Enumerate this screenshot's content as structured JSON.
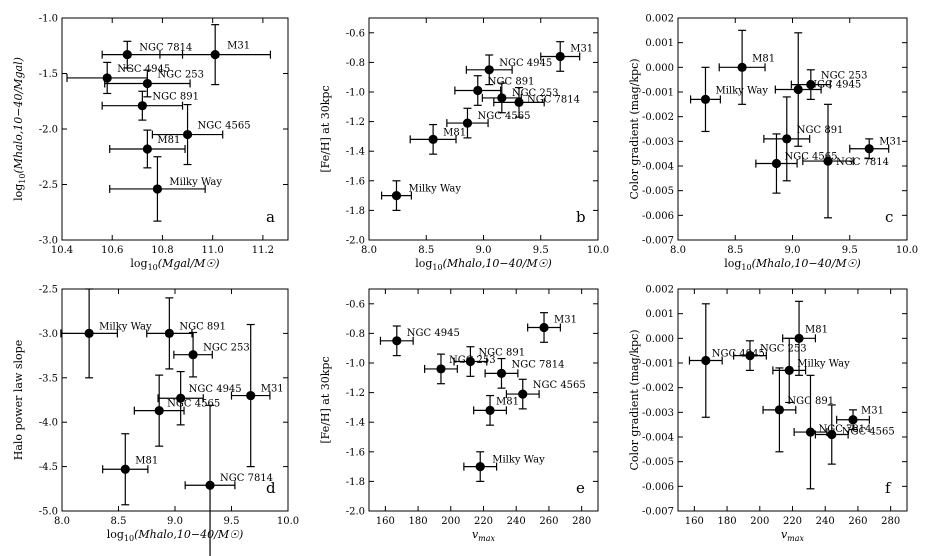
{
  "chart_data": [
    {
      "type": "scatter",
      "panel": "a",
      "xlabel": "log10(Mgal/M☉)",
      "ylabel": "log10(Mhalo,10−40/Mgal)",
      "xlim": [
        10.4,
        11.3
      ],
      "ylim": [
        -3.0,
        -1.0
      ],
      "xticks": [
        "10.4",
        "10.6",
        "10.8",
        "11.0",
        "11.2"
      ],
      "yticks": [
        "-1.0",
        "-1.5",
        "-2.0",
        "-2.5",
        "-3.0"
      ],
      "points": [
        {
          "name": "NGC 7814",
          "x": 10.66,
          "y": -1.33,
          "xerr": [
            0.1,
            0.22
          ],
          "yerr": 0.12
        },
        {
          "name": "M31",
          "x": 11.01,
          "y": -1.33,
          "xerr": 0.22,
          "yerr": 0.27
        },
        {
          "name": "NGC 4945",
          "x": 10.58,
          "y": -1.54,
          "xerr": 0.16,
          "yerr": 0.14
        },
        {
          "name": "NGC 253",
          "x": 10.74,
          "y": -1.59,
          "xerr": 0.17,
          "yerr": 0.12
        },
        {
          "name": "NGC 891",
          "x": 10.72,
          "y": -1.79,
          "xerr": 0.16,
          "yerr": 0.13
        },
        {
          "name": "NGC 4565",
          "x": 10.9,
          "y": -2.05,
          "xerr": 0.14,
          "yerr": 0.27
        },
        {
          "name": "M81",
          "x": 10.74,
          "y": -2.18,
          "xerr": 0.15,
          "yerr": 0.17
        },
        {
          "name": "Milky Way",
          "x": 10.78,
          "y": -2.54,
          "xerr": 0.19,
          "yerr": 0.29
        }
      ]
    },
    {
      "type": "scatter",
      "panel": "b",
      "xlabel": "log10(Mhalo,10−40/M☉)",
      "ylabel": "[Fe/H] at 30kpc",
      "xlim": [
        8.0,
        10.0
      ],
      "ylim": [
        -2.0,
        -0.5
      ],
      "xticks": [
        "8.0",
        "8.5",
        "9.0",
        "9.5",
        "10.0"
      ],
      "yticks": [
        "-0.6",
        "-0.8",
        "-1.0",
        "-1.2",
        "-1.4",
        "-1.6",
        "-1.8",
        "-2.0"
      ],
      "points": [
        {
          "name": "M31",
          "x": 9.67,
          "y": -0.76,
          "xerr": 0.17,
          "yerr": 0.1
        },
        {
          "name": "NGC 4945",
          "x": 9.05,
          "y": -0.85,
          "xerr": 0.2,
          "yerr": 0.1
        },
        {
          "name": "NGC 891",
          "x": 8.95,
          "y": -0.99,
          "xerr": 0.2,
          "yerr": 0.1
        },
        {
          "name": "NGC 253",
          "x": 9.16,
          "y": -1.04,
          "xerr": 0.17,
          "yerr": 0.1
        },
        {
          "name": "NGC 7814",
          "x": 9.31,
          "y": -1.07,
          "xerr": 0.22,
          "yerr": 0.1
        },
        {
          "name": "NGC 4565",
          "x": 8.86,
          "y": -1.21,
          "xerr": 0.18,
          "yerr": 0.1
        },
        {
          "name": "M81",
          "x": 8.56,
          "y": -1.32,
          "xerr": 0.2,
          "yerr": 0.1
        },
        {
          "name": "Milky Way",
          "x": 8.24,
          "y": -1.7,
          "xerr": 0.13,
          "yerr": 0.1
        }
      ]
    },
    {
      "type": "scatter",
      "panel": "c",
      "xlabel": "log10(Mhalo,10−40/M☉)",
      "ylabel": "Color gradient (mag/kpc)",
      "xlim": [
        8.0,
        10.0
      ],
      "ylim": [
        -0.007,
        0.002
      ],
      "xticks": [
        "8.0",
        "8.5",
        "9.0",
        "9.5",
        "10.0"
      ],
      "yticks": [
        "0.002",
        "0.001",
        "0.000",
        "-0.001",
        "-0.002",
        "-0.003",
        "-0.004",
        "-0.005",
        "-0.006",
        "-0.007"
      ],
      "points": [
        {
          "name": "M81",
          "x": 8.56,
          "y": 0.0,
          "xerr": 0.2,
          "yerr": 0.0015
        },
        {
          "name": "NGC 253",
          "x": 9.16,
          "y": -0.0007,
          "xerr": 0.17,
          "yerr": 0.0006
        },
        {
          "name": "NGC 4945",
          "x": 9.05,
          "y": -0.0009,
          "xerr": 0.2,
          "yerr": 0.0023
        },
        {
          "name": "Milky Way",
          "x": 8.24,
          "y": -0.0013,
          "xerr": 0.13,
          "yerr": 0.0013
        },
        {
          "name": "NGC 891",
          "x": 8.95,
          "y": -0.0029,
          "xerr": 0.2,
          "yerr": 0.0017
        },
        {
          "name": "M31",
          "x": 9.67,
          "y": -0.0033,
          "xerr": 0.17,
          "yerr": 0.0004
        },
        {
          "name": "NGC 7814",
          "x": 9.31,
          "y": -0.0038,
          "xerr": 0.22,
          "yerr": 0.0023
        },
        {
          "name": "NGC 4565",
          "x": 8.86,
          "y": -0.0039,
          "xerr": 0.18,
          "yerr": 0.0012
        }
      ]
    },
    {
      "type": "scatter",
      "panel": "d",
      "xlabel": "log10(Mhalo,10−40/M☉)",
      "ylabel": "Halo power law slope",
      "xlim": [
        8.0,
        10.0
      ],
      "ylim": [
        -5.0,
        -2.5
      ],
      "xticks": [
        "8.0",
        "8.5",
        "9.0",
        "9.5",
        "10.0"
      ],
      "yticks": [
        "-2.5",
        "-3.0",
        "-3.5",
        "-4.0",
        "-4.5",
        "-5.0"
      ],
      "points": [
        {
          "name": "Milky Way",
          "x": 8.24,
          "y": -3.0,
          "xerr": 0.25,
          "yerr": 0.5
        },
        {
          "name": "NGC 891",
          "x": 8.95,
          "y": -3.0,
          "xerr": 0.2,
          "yerr": 0.4
        },
        {
          "name": "NGC 253",
          "x": 9.16,
          "y": -3.24,
          "xerr": 0.17,
          "yerr": 0.25
        },
        {
          "name": "M31",
          "x": 9.67,
          "y": -3.7,
          "xerr": 0.17,
          "yerr": 0.8
        },
        {
          "name": "NGC 4945",
          "x": 9.05,
          "y": -3.73,
          "xerr": 0.2,
          "yerr": 0.3
        },
        {
          "name": "NGC 4565",
          "x": 8.86,
          "y": -3.87,
          "xerr": 0.22,
          "yerr": 0.4
        },
        {
          "name": "M81",
          "x": 8.56,
          "y": -4.53,
          "xerr": 0.2,
          "yerr": 0.4
        },
        {
          "name": "NGC 7814",
          "x": 9.31,
          "y": -4.71,
          "xerr": 0.22,
          "yerr": 0.9
        }
      ]
    },
    {
      "type": "scatter",
      "panel": "e",
      "xlabel": "vmax",
      "ylabel": "[Fe/H] at 30kpc",
      "xlim": [
        150,
        290
      ],
      "ylim": [
        -2.0,
        -0.5
      ],
      "xticks": [
        "160",
        "180",
        "200",
        "220",
        "240",
        "260",
        "280"
      ],
      "yticks": [
        "-0.6",
        "-0.8",
        "-1.0",
        "-1.2",
        "-1.4",
        "-1.6",
        "-1.8",
        "-2.0"
      ],
      "points": [
        {
          "name": "NGC 4945",
          "x": 167,
          "y": -0.85,
          "xerr": 10,
          "yerr": 0.1
        },
        {
          "name": "M31",
          "x": 257,
          "y": -0.76,
          "xerr": 10,
          "yerr": 0.1
        },
        {
          "name": "NGC 891",
          "x": 212,
          "y": -0.99,
          "xerr": 10,
          "yerr": 0.1
        },
        {
          "name": "NGC 253",
          "x": 194,
          "y": -1.04,
          "xerr": 10,
          "yerr": 0.1
        },
        {
          "name": "NGC 7814",
          "x": 231,
          "y": -1.07,
          "xerr": 10,
          "yerr": 0.1
        },
        {
          "name": "NGC 4565",
          "x": 244,
          "y": -1.21,
          "xerr": 10,
          "yerr": 0.1
        },
        {
          "name": "M81",
          "x": 224,
          "y": -1.32,
          "xerr": 10,
          "yerr": 0.1
        },
        {
          "name": "Milky Way",
          "x": 218,
          "y": -1.7,
          "xerr": 10,
          "yerr": 0.1
        }
      ]
    },
    {
      "type": "scatter",
      "panel": "f",
      "xlabel": "vmax",
      "ylabel": "Color gradient (mag/kpc)",
      "xlim": [
        150,
        290
      ],
      "ylim": [
        -0.007,
        0.002
      ],
      "xticks": [
        "160",
        "180",
        "200",
        "220",
        "240",
        "260",
        "280"
      ],
      "yticks": [
        "0.002",
        "0.001",
        "0.000",
        "-0.001",
        "-0.002",
        "-0.003",
        "-0.004",
        "-0.005",
        "-0.006",
        "-0.007"
      ],
      "points": [
        {
          "name": "M81",
          "x": 224,
          "y": 0.0,
          "xerr": 10,
          "yerr": 0.0015
        },
        {
          "name": "NGC 253",
          "x": 194,
          "y": -0.0007,
          "xerr": 10,
          "yerr": 0.0006
        },
        {
          "name": "NGC 4945",
          "x": 167,
          "y": -0.0009,
          "xerr": 10,
          "yerr": 0.0023
        },
        {
          "name": "Milky Way",
          "x": 218,
          "y": -0.0013,
          "xerr": 10,
          "yerr": 0.0013
        },
        {
          "name": "NGC 891",
          "x": 212,
          "y": -0.0029,
          "xerr": 10,
          "yerr": 0.0017
        },
        {
          "name": "M31",
          "x": 257,
          "y": -0.0033,
          "xerr": 10,
          "yerr": 0.0004
        },
        {
          "name": "NGC 7814",
          "x": 231,
          "y": -0.0038,
          "xerr": 10,
          "yerr": 0.0023
        },
        {
          "name": "NGC 4565",
          "x": 244,
          "y": -0.0039,
          "xerr": 10,
          "yerr": 0.0012
        }
      ]
    }
  ]
}
